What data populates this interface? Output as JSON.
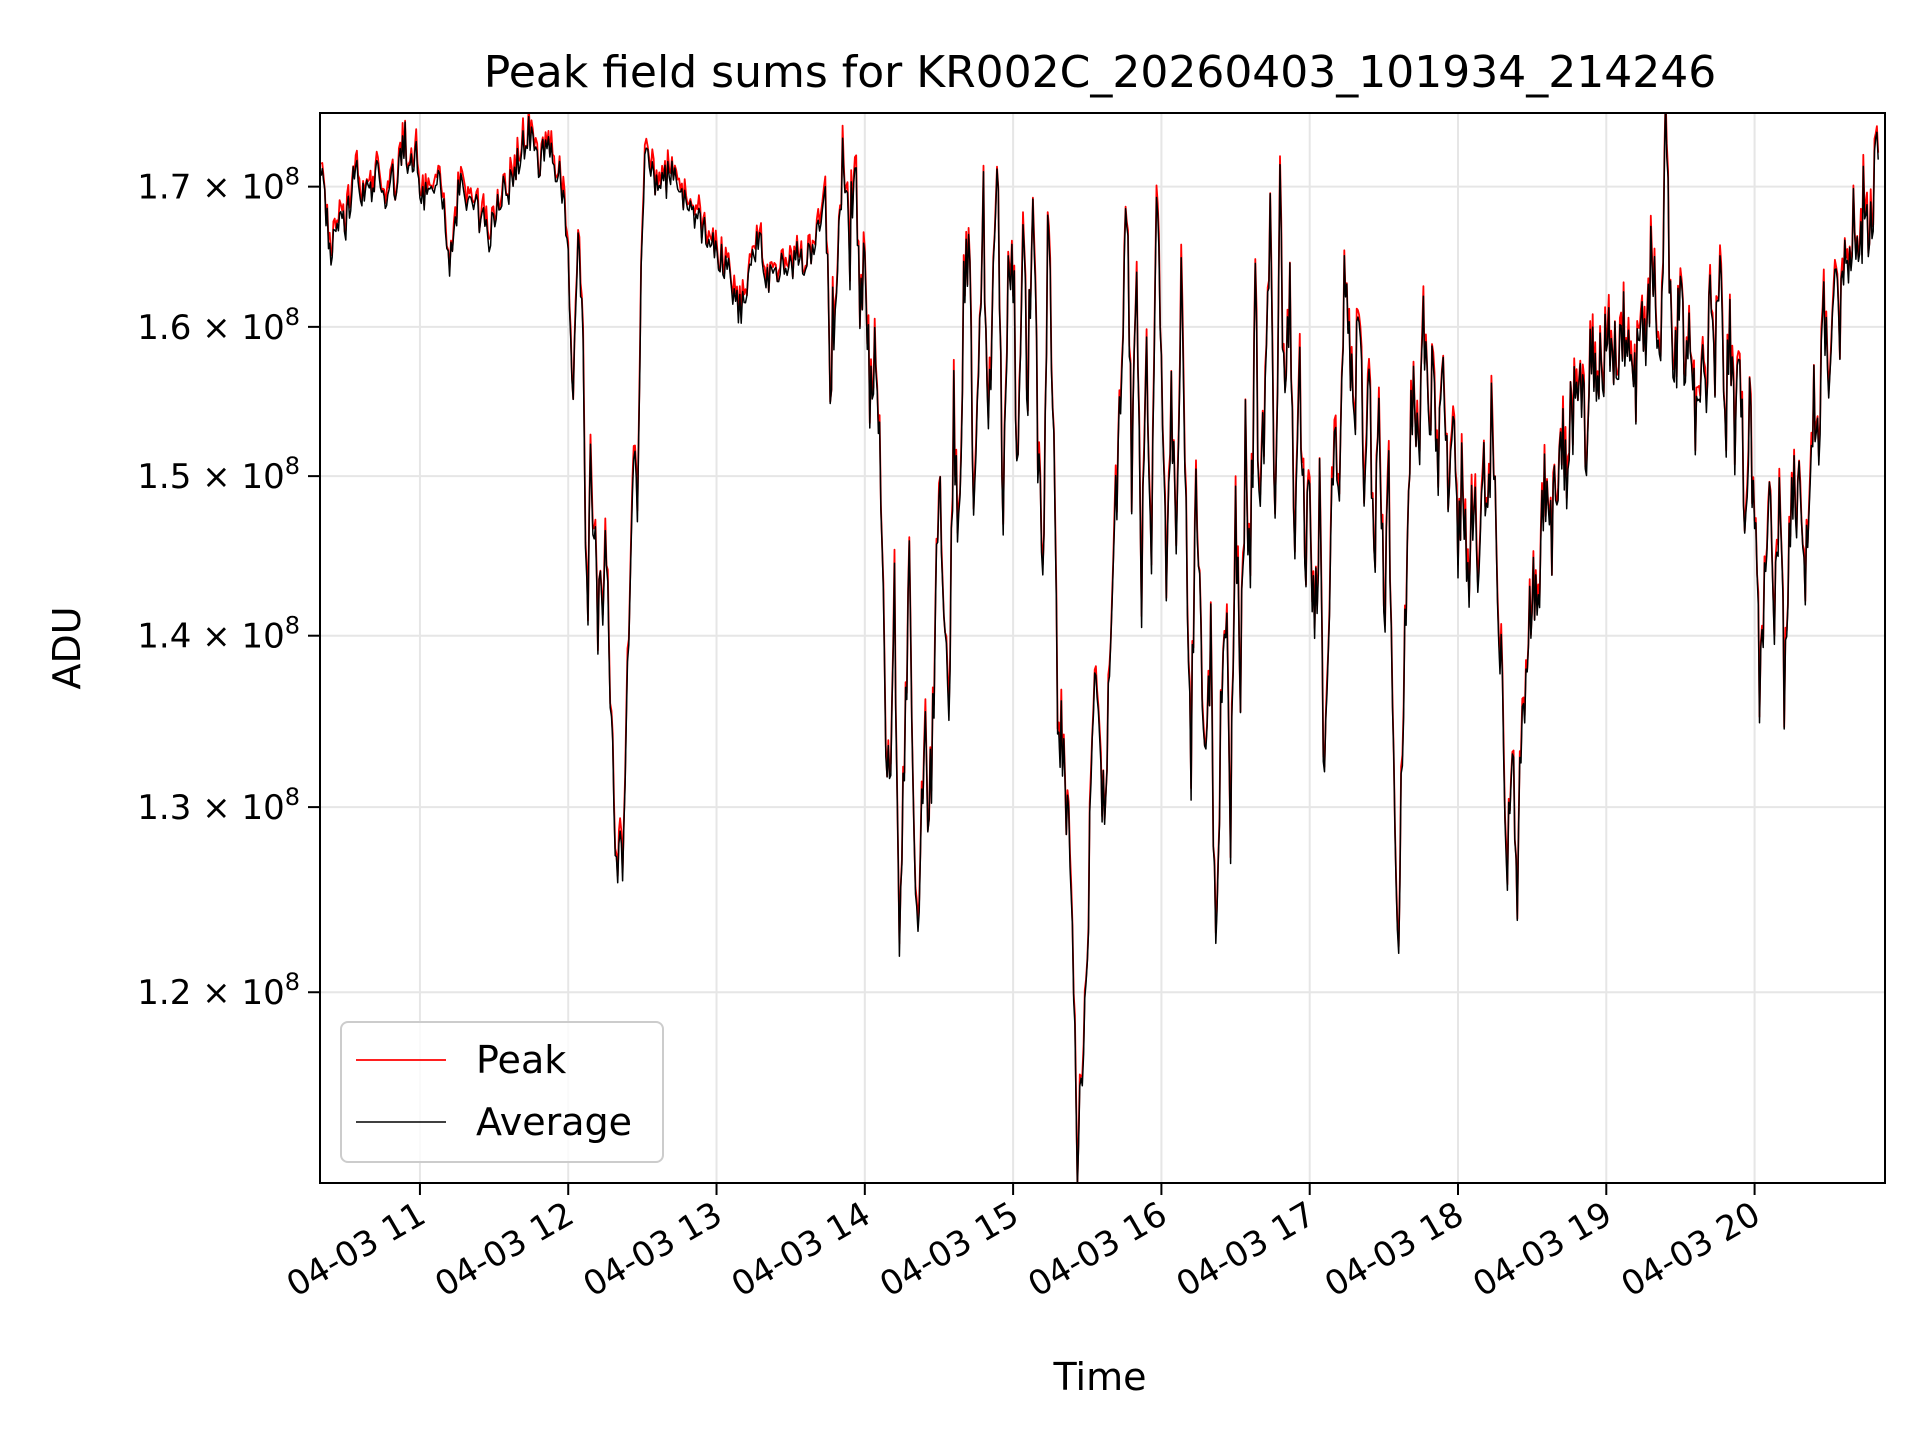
{
  "chart_data": {
    "type": "line",
    "title": "Peak field sums for KR002C_20260403_101934_214246",
    "xlabel": "Time",
    "ylabel": "ADU",
    "yscale": "log",
    "xlim": [
      "2026-04-03 10:19:34",
      "2026-04-03 20:52:46"
    ],
    "ylim": [
      110500000,
      175500000
    ],
    "grid": true,
    "legend_location": "lower-left",
    "x_ticks": [
      "04-03 11",
      "04-03 12",
      "04-03 13",
      "04-03 14",
      "04-03 15",
      "04-03 16",
      "04-03 17",
      "04-03 18",
      "04-03 19",
      "04-03 20"
    ],
    "y_ticks": [
      {
        "value": 120000000,
        "mantissa": "1.2",
        "exp": "8"
      },
      {
        "value": 130000000,
        "mantissa": "1.3",
        "exp": "8"
      },
      {
        "value": 140000000,
        "mantissa": "1.4",
        "exp": "8"
      },
      {
        "value": 150000000,
        "mantissa": "1.5",
        "exp": "8"
      },
      {
        "value": 160000000,
        "mantissa": "1.6",
        "exp": "8"
      },
      {
        "value": 170000000,
        "mantissa": "1.7",
        "exp": "8"
      }
    ],
    "series": [
      {
        "name": "Peak",
        "color": "#ff0000"
      },
      {
        "name": "Average",
        "color": "#000000"
      }
    ],
    "points": [
      [
        "10:20",
        172
      ],
      [
        "10:22",
        168
      ],
      [
        "10:24",
        165
      ],
      [
        "10:26",
        166.5
      ],
      [
        "10:28",
        167.5
      ],
      [
        "10:30",
        167
      ],
      [
        "10:32",
        169
      ],
      [
        "10:34",
        171.5
      ],
      [
        "10:36",
        169
      ],
      [
        "10:38",
        170
      ],
      [
        "10:40",
        169.5
      ],
      [
        "10:42",
        171
      ],
      [
        "10:44",
        170.5
      ],
      [
        "10:46",
        169
      ],
      [
        "10:48",
        171.5
      ],
      [
        "10:50",
        169.5
      ],
      [
        "10:52",
        172
      ],
      [
        "10:54",
        173.5
      ],
      [
        "10:56",
        171
      ],
      [
        "10:58",
        173
      ],
      [
        "11:00",
        170
      ],
      [
        "11:04",
        168.5
      ],
      [
        "11:08",
        171
      ],
      [
        "11:12",
        164
      ],
      [
        "11:16",
        170
      ],
      [
        "11:20",
        169
      ],
      [
        "11:24",
        168
      ],
      [
        "11:28",
        166.5
      ],
      [
        "11:32",
        169.5
      ],
      [
        "11:36",
        170
      ],
      [
        "11:40",
        172
      ],
      [
        "11:44",
        174
      ],
      [
        "11:48",
        171.5
      ],
      [
        "11:52",
        173
      ],
      [
        "11:56",
        171
      ],
      [
        "11:58",
        169
      ],
      [
        "12:00",
        165
      ],
      [
        "12:02",
        155
      ],
      [
        "12:04",
        166
      ],
      [
        "12:06",
        160
      ],
      [
        "12:07",
        145
      ],
      [
        "12:08",
        140
      ],
      [
        "12:09",
        153
      ],
      [
        "12:10",
        146
      ],
      [
        "12:11",
        146.5
      ],
      [
        "12:12",
        140
      ],
      [
        "12:13",
        145
      ],
      [
        "12:14",
        141
      ],
      [
        "12:15",
        147
      ],
      [
        "12:16",
        142.5
      ],
      [
        "12:17",
        136
      ],
      [
        "12:18",
        133
      ],
      [
        "12:19",
        128
      ],
      [
        "12:20",
        126
      ],
      [
        "12:21",
        129
      ],
      [
        "12:22",
        125
      ],
      [
        "12:23",
        131
      ],
      [
        "12:24",
        138
      ],
      [
        "12:25",
        143
      ],
      [
        "12:26",
        148
      ],
      [
        "12:27",
        152
      ],
      [
        "12:28",
        146
      ],
      [
        "12:29",
        158
      ],
      [
        "12:30",
        168
      ],
      [
        "12:31",
        172
      ],
      [
        "12:34",
        170.5
      ],
      [
        "12:38",
        170
      ],
      [
        "12:42",
        171
      ],
      [
        "12:46",
        169.5
      ],
      [
        "12:50",
        168
      ],
      [
        "12:54",
        167
      ],
      [
        "12:58",
        166
      ],
      [
        "13:02",
        165
      ],
      [
        "13:06",
        163
      ],
      [
        "13:10",
        161
      ],
      [
        "13:14",
        164
      ],
      [
        "13:18",
        166.5
      ],
      [
        "13:20",
        163
      ],
      [
        "13:24",
        164.5
      ],
      [
        "13:28",
        163.5
      ],
      [
        "13:32",
        165
      ],
      [
        "13:36",
        164
      ],
      [
        "13:40",
        166
      ],
      [
        "13:44",
        169
      ],
      [
        "13:46",
        158
      ],
      [
        "13:48",
        162
      ],
      [
        "13:50",
        169
      ],
      [
        "13:52",
        171
      ],
      [
        "13:54",
        166
      ],
      [
        "13:56",
        170
      ],
      [
        "13:58",
        162
      ],
      [
        "14:00",
        166
      ],
      [
        "14:02",
        155
      ],
      [
        "14:04",
        160
      ],
      [
        "14:06",
        152
      ],
      [
        "14:08",
        138
      ],
      [
        "14:10",
        129
      ],
      [
        "14:12",
        143
      ],
      [
        "14:14",
        124
      ],
      [
        "14:16",
        131
      ],
      [
        "14:18",
        145
      ],
      [
        "14:20",
        126
      ],
      [
        "14:22",
        124
      ],
      [
        "14:24",
        135
      ],
      [
        "14:26",
        128
      ],
      [
        "14:28",
        138
      ],
      [
        "14:30",
        150
      ],
      [
        "14:32",
        142
      ],
      [
        "14:34",
        133
      ],
      [
        "14:36",
        155
      ],
      [
        "14:38",
        146
      ],
      [
        "14:40",
        162
      ],
      [
        "14:42",
        166
      ],
      [
        "14:44",
        148
      ],
      [
        "14:46",
        158
      ],
      [
        "14:48",
        168
      ],
      [
        "14:50",
        152
      ],
      [
        "14:52",
        163
      ],
      [
        "14:54",
        170
      ],
      [
        "14:56",
        147
      ],
      [
        "14:58",
        162
      ],
      [
        "15:00",
        165
      ],
      [
        "15:02",
        149
      ],
      [
        "15:04",
        166
      ],
      [
        "15:06",
        156
      ],
      [
        "15:08",
        170
      ],
      [
        "15:10",
        152
      ],
      [
        "15:12",
        142
      ],
      [
        "15:14",
        168
      ],
      [
        "15:16",
        156
      ],
      [
        "15:18",
        137
      ],
      [
        "15:20",
        133
      ],
      [
        "15:22",
        129
      ],
      [
        "15:24",
        122
      ],
      [
        "15:26",
        111
      ],
      [
        "15:28",
        116
      ],
      [
        "15:30",
        123
      ],
      [
        "15:32",
        133
      ],
      [
        "15:34",
        139
      ],
      [
        "15:36",
        128
      ],
      [
        "15:38",
        135
      ],
      [
        "15:40",
        144
      ],
      [
        "15:42",
        150
      ],
      [
        "15:44",
        156
      ],
      [
        "15:46",
        168
      ],
      [
        "15:48",
        150
      ],
      [
        "15:50",
        164
      ],
      [
        "15:52",
        143
      ],
      [
        "15:54",
        158
      ],
      [
        "15:56",
        147
      ],
      [
        "15:58",
        170
      ],
      [
        "16:00",
        158
      ],
      [
        "16:02",
        143
      ],
      [
        "16:04",
        155
      ],
      [
        "16:06",
        148
      ],
      [
        "16:08",
        162
      ],
      [
        "16:10",
        146
      ],
      [
        "16:12",
        133
      ],
      [
        "16:14",
        149
      ],
      [
        "16:16",
        138
      ],
      [
        "16:18",
        131
      ],
      [
        "16:20",
        139
      ],
      [
        "16:22",
        121
      ],
      [
        "16:24",
        135
      ],
      [
        "16:26",
        143
      ],
      [
        "16:28",
        128
      ],
      [
        "16:30",
        148
      ],
      [
        "16:32",
        137
      ],
      [
        "16:34",
        152
      ],
      [
        "16:36",
        144
      ],
      [
        "16:38",
        161
      ],
      [
        "16:40",
        147
      ],
      [
        "16:42",
        156
      ],
      [
        "16:44",
        166
      ],
      [
        "16:46",
        149
      ],
      [
        "16:48",
        168
      ],
      [
        "16:50",
        154
      ],
      [
        "16:52",
        163
      ],
      [
        "16:54",
        147
      ],
      [
        "16:56",
        157
      ],
      [
        "16:58",
        145
      ],
      [
        "17:00",
        149
      ],
      [
        "17:02",
        140
      ],
      [
        "17:04",
        148
      ],
      [
        "17:06",
        131
      ],
      [
        "17:08",
        143
      ],
      [
        "17:10",
        156
      ],
      [
        "17:12",
        149
      ],
      [
        "17:14",
        164
      ],
      [
        "17:16",
        158
      ],
      [
        "17:18",
        152
      ],
      [
        "17:20",
        162
      ],
      [
        "17:22",
        148
      ],
      [
        "17:24",
        159
      ],
      [
        "17:26",
        144
      ],
      [
        "17:28",
        156
      ],
      [
        "17:30",
        141
      ],
      [
        "17:32",
        150
      ],
      [
        "17:34",
        131
      ],
      [
        "17:36",
        124
      ],
      [
        "17:38",
        137
      ],
      [
        "17:40",
        150
      ],
      [
        "17:42",
        158
      ],
      [
        "17:44",
        152
      ],
      [
        "17:46",
        160
      ],
      [
        "17:48",
        154
      ],
      [
        "17:50",
        157
      ],
      [
        "17:52",
        151
      ],
      [
        "17:54",
        155
      ],
      [
        "17:56",
        148
      ],
      [
        "17:58",
        153
      ],
      [
        "18:00",
        146
      ],
      [
        "18:02",
        151
      ],
      [
        "18:04",
        143
      ],
      [
        "18:06",
        149
      ],
      [
        "18:08",
        145
      ],
      [
        "18:10",
        152
      ],
      [
        "18:12",
        147
      ],
      [
        "18:14",
        155
      ],
      [
        "18:16",
        142
      ],
      [
        "18:18",
        136
      ],
      [
        "18:20",
        128
      ],
      [
        "18:22",
        132
      ],
      [
        "18:24",
        126
      ],
      [
        "18:26",
        135
      ],
      [
        "18:28",
        139
      ],
      [
        "18:30",
        144
      ],
      [
        "18:32",
        142
      ],
      [
        "18:34",
        147
      ],
      [
        "18:36",
        150
      ],
      [
        "18:38",
        146
      ],
      [
        "18:40",
        149
      ],
      [
        "18:42",
        152
      ],
      [
        "18:44",
        151
      ],
      [
        "18:46",
        154
      ],
      [
        "18:48",
        155
      ],
      [
        "18:50",
        157
      ],
      [
        "18:52",
        152
      ],
      [
        "18:54",
        158
      ],
      [
        "18:56",
        155
      ],
      [
        "18:58",
        159
      ],
      [
        "19:00",
        157
      ],
      [
        "19:02",
        161
      ],
      [
        "19:04",
        156
      ],
      [
        "19:06",
        162
      ],
      [
        "19:08",
        157
      ],
      [
        "19:10",
        159
      ],
      [
        "19:12",
        155
      ],
      [
        "19:14",
        163
      ],
      [
        "19:16",
        158
      ],
      [
        "19:18",
        165
      ],
      [
        "19:20",
        161
      ],
      [
        "19:22",
        158
      ],
      [
        "19:24",
        173
      ],
      [
        "19:26",
        162
      ],
      [
        "19:28",
        158
      ],
      [
        "19:30",
        163
      ],
      [
        "19:32",
        156
      ],
      [
        "19:34",
        160
      ],
      [
        "19:36",
        154
      ],
      [
        "19:38",
        158
      ],
      [
        "19:40",
        155
      ],
      [
        "19:42",
        161
      ],
      [
        "19:44",
        157
      ],
      [
        "19:46",
        165
      ],
      [
        "19:48",
        153
      ],
      [
        "19:50",
        159
      ],
      [
        "19:52",
        151
      ],
      [
        "19:54",
        157
      ],
      [
        "19:56",
        148
      ],
      [
        "19:58",
        154
      ],
      [
        "20:00",
        148
      ],
      [
        "20:02",
        137
      ],
      [
        "20:04",
        143
      ],
      [
        "20:06",
        151
      ],
      [
        "20:08",
        140
      ],
      [
        "20:10",
        147
      ],
      [
        "20:12",
        137
      ],
      [
        "20:14",
        145
      ],
      [
        "20:16",
        150
      ],
      [
        "20:18",
        148
      ],
      [
        "20:20",
        143
      ],
      [
        "20:22",
        150
      ],
      [
        "20:24",
        156
      ],
      [
        "20:26",
        153
      ],
      [
        "20:28",
        160
      ],
      [
        "20:30",
        158
      ],
      [
        "20:32",
        162
      ],
      [
        "20:34",
        160
      ],
      [
        "20:36",
        165
      ],
      [
        "20:38",
        163
      ],
      [
        "20:40",
        167
      ],
      [
        "20:42",
        164
      ],
      [
        "20:44",
        169
      ],
      [
        "20:46",
        166
      ],
      [
        "20:48",
        170
      ],
      [
        "20:50",
        172
      ]
    ]
  }
}
